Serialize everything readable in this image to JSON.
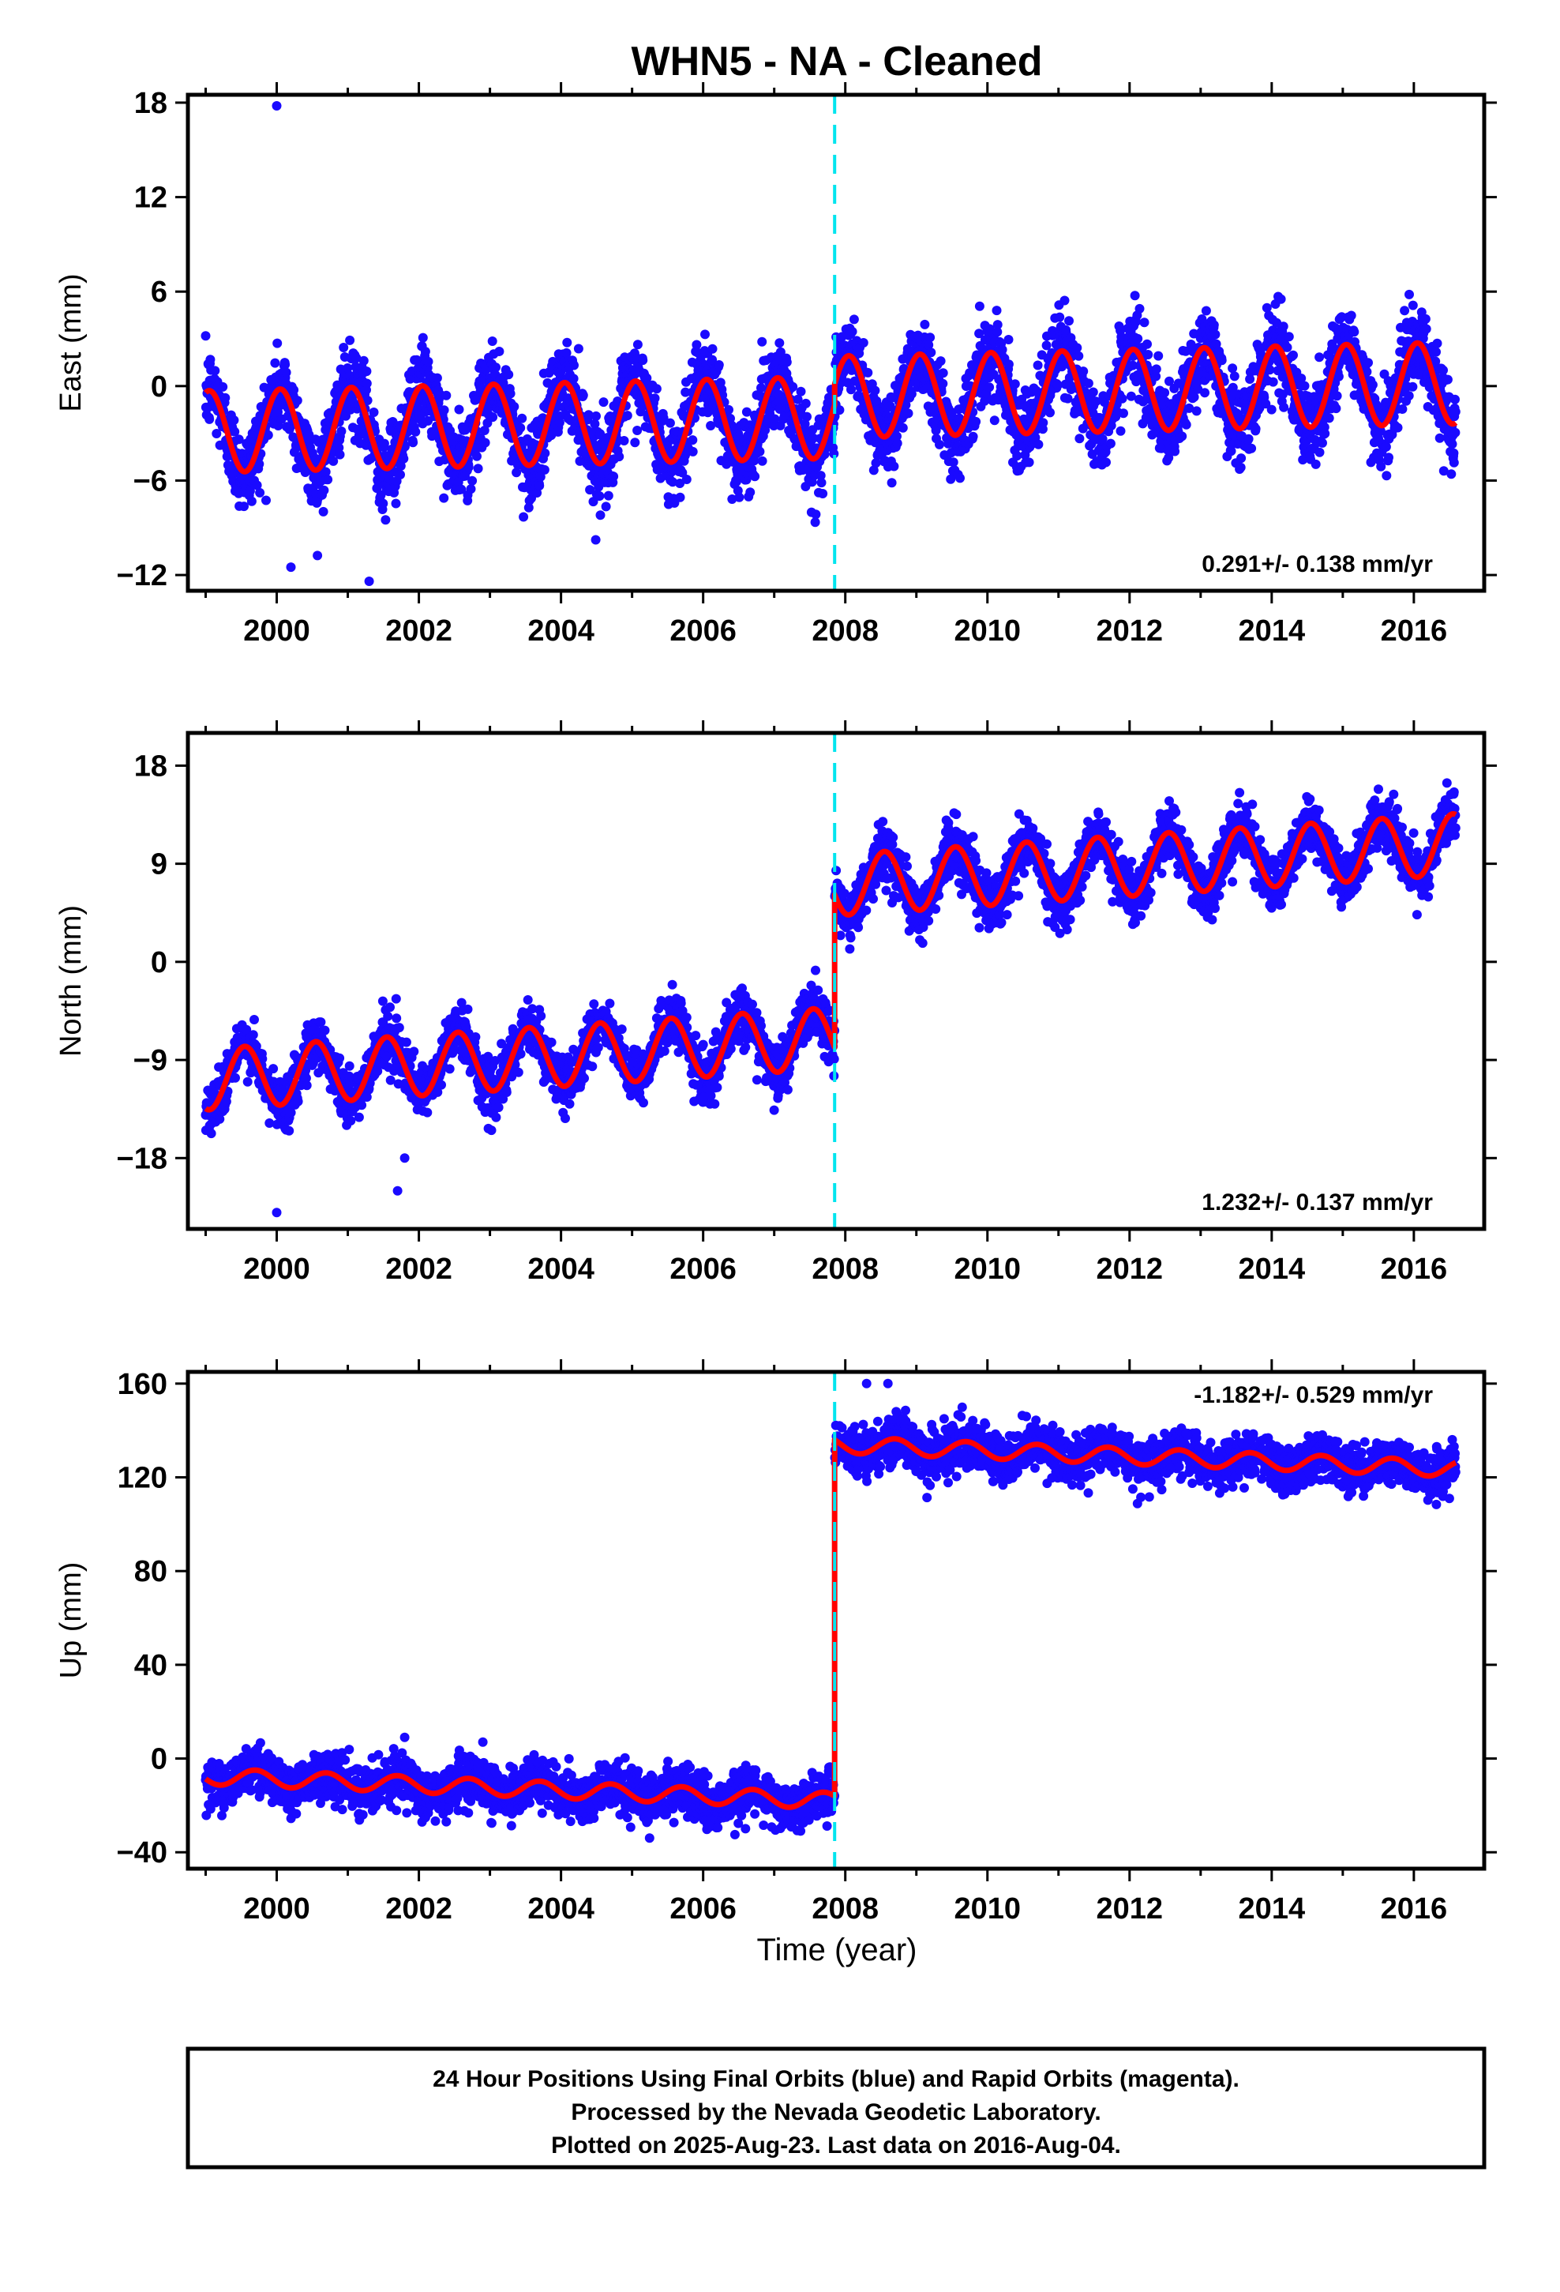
{
  "chart_data": {
    "title": "WHN5  - NA - Cleaned",
    "xlabel": "Time (year)",
    "xlim": [
      1998.75,
      2016.99
    ],
    "x_ticks": [
      2000,
      2002,
      2004,
      2006,
      2008,
      2010,
      2012,
      2014,
      2016
    ],
    "data_start": 1999.0,
    "data_end": 2016.59,
    "offset_epoch": 2007.85,
    "colors": {
      "observations": "#1a0aff",
      "model": "#ff0000",
      "offset_line": "#00e5ee",
      "frame": "#000000"
    },
    "panels": [
      {
        "type": "scatter",
        "ylabel": "East (mm)",
        "ylim": [
          -13,
          18.5
        ],
        "y_ticks": [
          18,
          12,
          6,
          0,
          -6,
          -12
        ],
        "rate_text": "0.291+/- 0.138 mm/yr",
        "model": {
          "slope_mm_per_yr": 0.291,
          "pre_offset_mean": -2.0,
          "post_offset_mean": -0.7,
          "annual_amplitude": 2.6,
          "phase_peak_year_fraction": 0.05,
          "scatter_sd": 1.3
        },
        "outliers": [
          [
            2000.0,
            17.8
          ],
          [
            2000.2,
            -11.5
          ],
          [
            2001.3,
            -12.4
          ]
        ]
      },
      {
        "type": "scatter",
        "ylabel": "North (mm)",
        "ylim": [
          -24.5,
          21
        ],
        "y_ticks": [
          18,
          9,
          0,
          -9,
          -18
        ],
        "rate_text": "1.232+/- 0.137 mm/yr",
        "model": {
          "slope_mm_per_yr": 1.232,
          "pre_offset_mean": -7.0,
          "post_offset_mean": 7.0,
          "annual_amplitude": 2.8,
          "phase_peak_year_fraction": 0.55,
          "scatter_sd": 1.2
        },
        "outliers": [
          [
            2000.0,
            -23.0
          ],
          [
            2001.7,
            -21.0
          ],
          [
            2001.8,
            -18.0
          ]
        ]
      },
      {
        "type": "scatter",
        "ylabel": "Up (mm)",
        "ylim": [
          -47,
          165
        ],
        "y_ticks": [
          160,
          120,
          80,
          40,
          0,
          -40
        ],
        "rate_text": "-1.182+/- 0.529 mm/yr",
        "model": {
          "slope_mm_per_yr": -1.182,
          "pre_offset_mean": -18.0,
          "post_offset_mean": 134.0,
          "annual_amplitude": 3.5,
          "phase_peak_year_fraction": 0.7,
          "scatter_sd": 5.0
        },
        "outliers": [
          [
            2001.8,
            9.0
          ],
          [
            2002.9,
            7.0
          ],
          [
            2008.3,
            160.0
          ],
          [
            2008.6,
            160.0
          ]
        ]
      }
    ]
  },
  "footer": {
    "line1": "24 Hour Positions Using Final Orbits (blue) and Rapid Orbits (magenta).",
    "line2": "Processed by the Nevada Geodetic Laboratory.",
    "line3": "Plotted on 2025-Aug-23. Last data on 2016-Aug-04."
  }
}
